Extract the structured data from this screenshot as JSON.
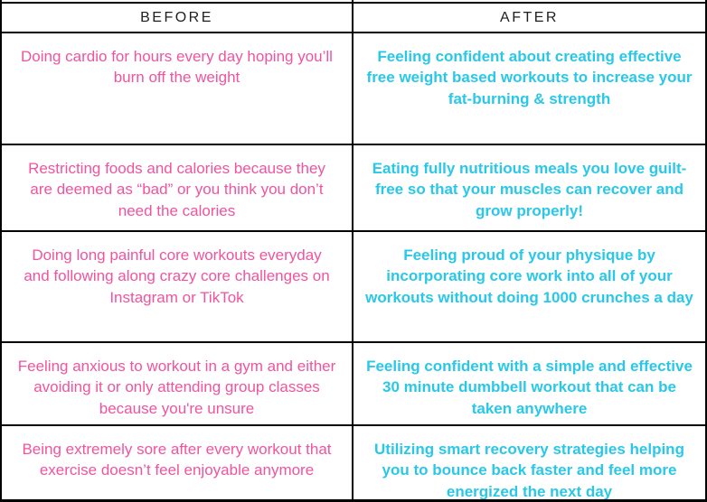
{
  "colors": {
    "before_text": "#f0549e",
    "after_text": "#29c8e8",
    "header_text": "#1e1e1e",
    "border": "#000000",
    "background": "#ffffff"
  },
  "table": {
    "headers": {
      "before": "BEFORE",
      "after": "AFTER"
    },
    "rows": [
      {
        "before": "Doing cardio for hours every day hoping you’ll burn off the weight",
        "after": "Feeling confident about creating effective free weight based workouts to increase your fat-burning & strength"
      },
      {
        "before": "Restricting foods and calories because they are deemed as “bad” or you think you don’t need the calories",
        "after": "Eating fully nutritious meals you love guilt-free so that your muscles can recover and grow properly!"
      },
      {
        "before": "Doing long painful core workouts everyday and following along crazy core challenges on Instagram or TikTok",
        "after": "Feeling proud of your physique by incorporating core work into all of your workouts without doing 1000 crunches a day"
      },
      {
        "before": "Feeling anxious to workout in a gym and either avoiding it or only attending group classes because you're unsure",
        "after": "Feeling confident with a simple and effective 30 minute dumbbell workout that can be taken anywhere"
      },
      {
        "before": "Being extremely sore after every workout that exercise doesn’t feel enjoyable anymore",
        "after": "Utilizing smart recovery strategies helping you to bounce back faster and feel more energized the next day"
      }
    ]
  }
}
